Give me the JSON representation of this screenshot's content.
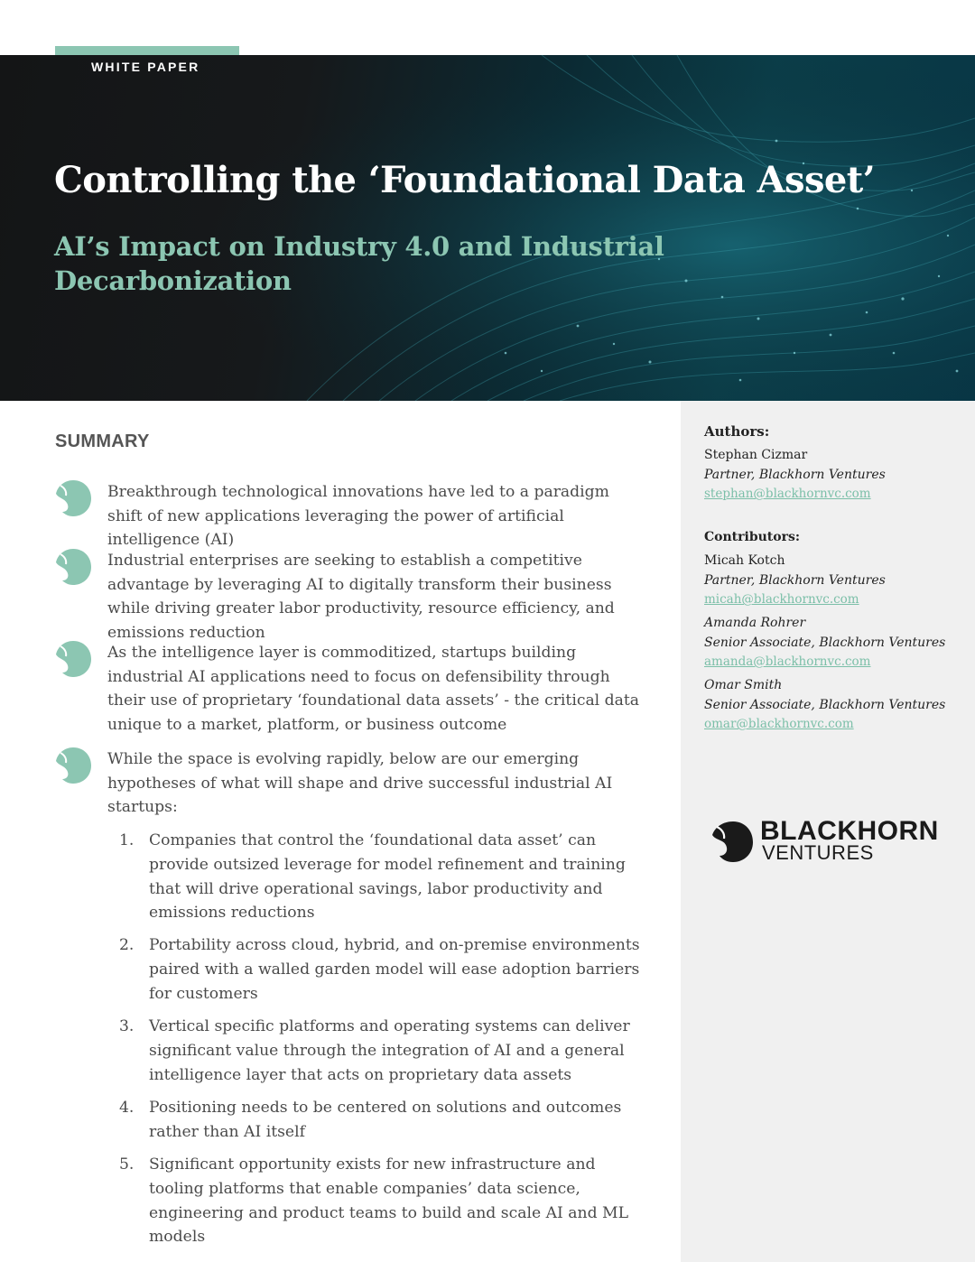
{
  "header": {
    "tag": "WHITE PAPER",
    "title": "Controlling the ‘Foundational Data Asset’",
    "subtitle": "AI’s Impact on Industry 4.0 and Industrial Decarbonization"
  },
  "summary": {
    "heading": "SUMMARY",
    "bullets": [
      "Breakthrough technological innovations have led to a paradigm shift of new applications leveraging the power of artificial intelligence (AI)",
      "Industrial enterprises are seeking to establish a competitive advantage by leveraging AI to digitally transform their business while driving greater labor productivity, resource efficiency, and emissions reduction",
      "As the intelligence layer is commoditized, startups building industrial AI applications need to focus on defensibility through their use of proprietary ‘foundational data assets’ - the critical data unique to a market, platform, or business outcome",
      "While the space is evolving rapidly, below are our emerging hypotheses of what will shape and drive successful industrial AI startups:"
    ],
    "hypotheses": [
      {
        "num": "1.",
        "text": "Companies that control the ‘foundational data asset’ can provide outsized leverage for model refinement and training that will drive operational savings, labor productivity and emissions reductions"
      },
      {
        "num": "2.",
        "text": "Portability across cloud, hybrid, and on-premise environments paired with a walled garden model will ease adoption barriers for customers"
      },
      {
        "num": "3.",
        "text": "Vertical specific platforms and operating systems can deliver significant value through the integration of AI and a general intelligence layer that acts on proprietary data assets"
      },
      {
        "num": "4.",
        "text": "Positioning needs to be centered on solutions and outcomes rather than AI itself"
      },
      {
        "num": "5.",
        "text": "Significant opportunity exists for new infrastructure and tooling platforms that enable companies’ data science, engineering and product teams to build and scale AI and ML models"
      }
    ]
  },
  "sidebar": {
    "authors_heading": "Authors:",
    "authors": [
      {
        "name": "Stephan Cizmar",
        "role": "Partner, Blackhorn Ventures",
        "email": "stephan@blackhornvc.com"
      }
    ],
    "contributors_heading": "Contributors:",
    "contributors": [
      {
        "name": "Micah Kotch",
        "role": "Partner, Blackhorn Ventures",
        "email": "micah@blackhornvc.com"
      },
      {
        "name": "Amanda Rohrer",
        "role": "Senior Associate, Blackhorn Ventures",
        "email": "amanda@blackhornvc.com"
      },
      {
        "name": "Omar Smith",
        "role": "Senior Associate, Blackhorn Ventures",
        "email": "omar@blackhornvc.com"
      }
    ],
    "logo": {
      "line1": "BLACKHORN",
      "line2": "VENTURES"
    }
  },
  "colors": {
    "accent": "#8cc6b2",
    "link": "#7bbfa8",
    "hero_dark": "#141516",
    "hero_teal": "#0b3d48",
    "sidebar_bg": "#f0f0f0"
  },
  "icons": {
    "bullet": "blackhorn-horn-icon",
    "logo": "blackhorn-logo-icon"
  }
}
